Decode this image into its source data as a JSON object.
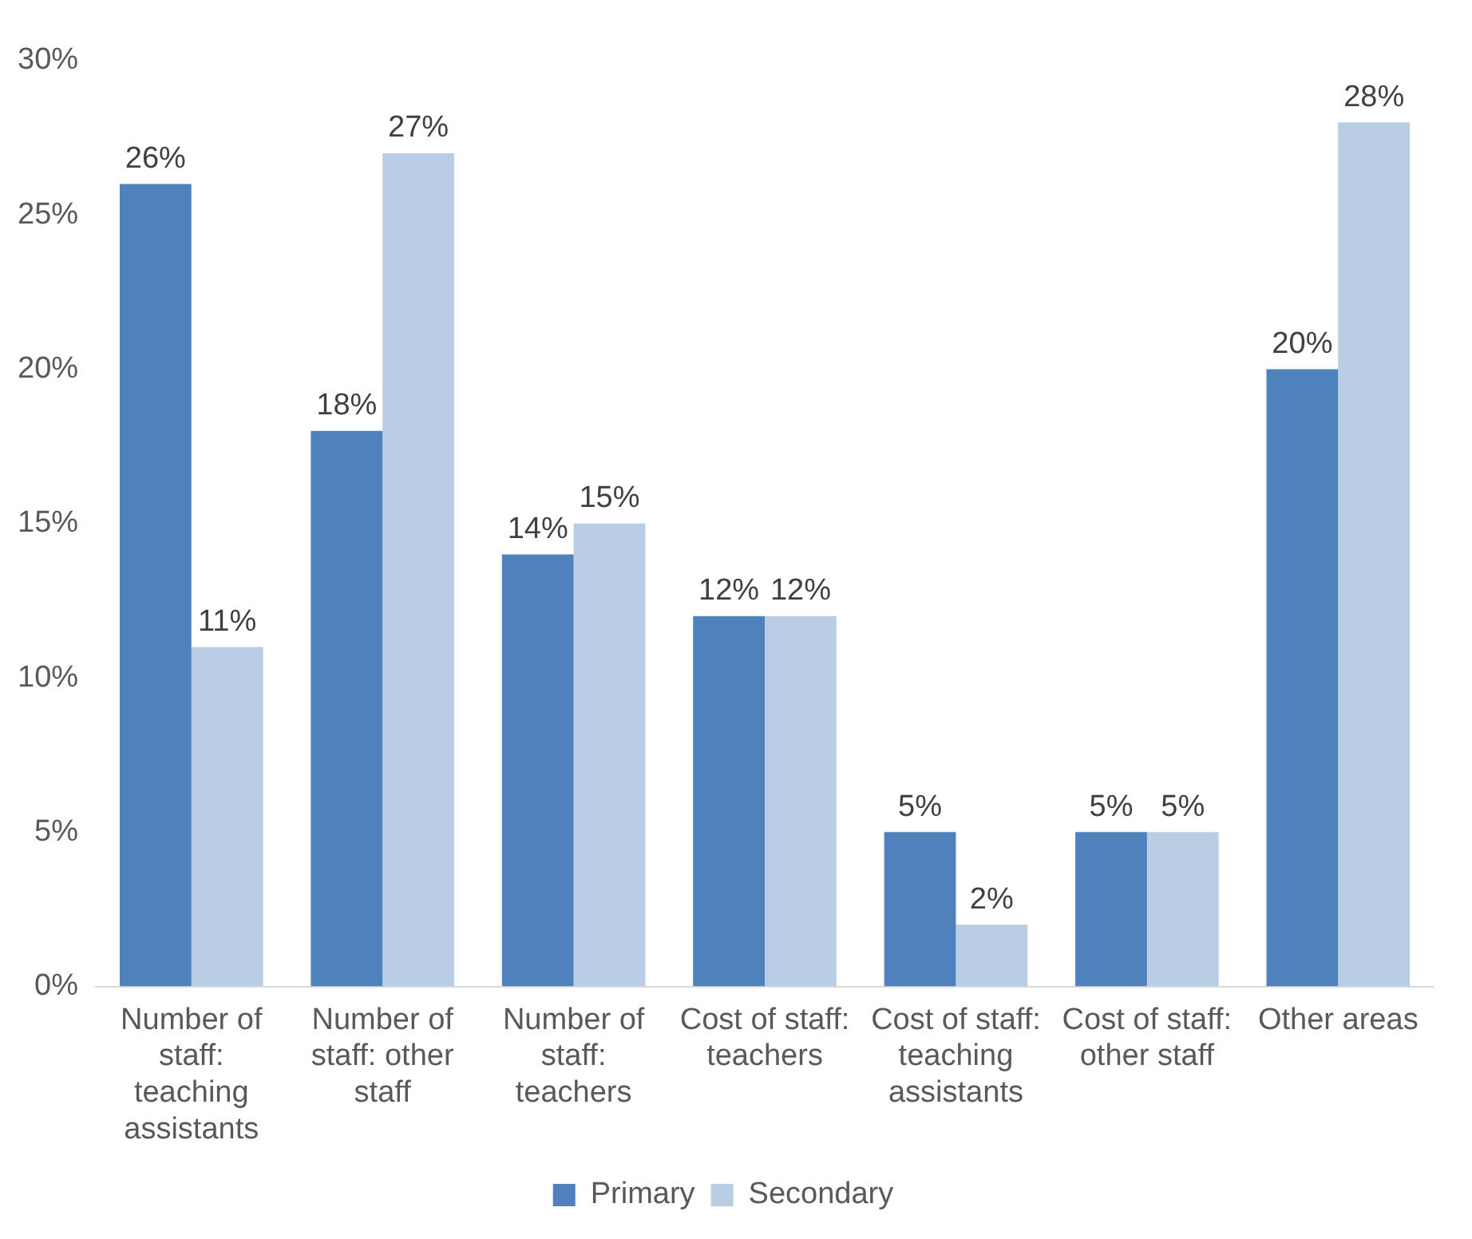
{
  "chart_data": {
    "type": "bar",
    "categories": [
      "Number of staff: teaching assistants",
      "Number of staff: other staff",
      "Number of staff: teachers",
      "Cost of staff: teachers",
      "Cost of staff: teaching assistants",
      "Cost of staff: other staff",
      "Other areas"
    ],
    "series": [
      {
        "name": "Primary",
        "color": "#4f81bd",
        "values": [
          26,
          18,
          14,
          12,
          5,
          5,
          20
        ],
        "value_labels": [
          "26%",
          "18%",
          "14%",
          "12%",
          "5%",
          "5%",
          "20%"
        ]
      },
      {
        "name": "Secondary",
        "color": "#b9cde5",
        "values": [
          11,
          27,
          15,
          12,
          2,
          5,
          28
        ],
        "value_labels": [
          "11%",
          "27%",
          "15%",
          "12%",
          "2%",
          "5%",
          "28%"
        ]
      }
    ],
    "ylim": [
      0,
      30
    ],
    "yticks": [
      {
        "value": 0,
        "label": "0%"
      },
      {
        "value": 5,
        "label": "5%"
      },
      {
        "value": 10,
        "label": "10%"
      },
      {
        "value": 15,
        "label": "15%"
      },
      {
        "value": 20,
        "label": "20%"
      },
      {
        "value": 25,
        "label": "25%"
      },
      {
        "value": 30,
        "label": "30%"
      }
    ],
    "grid": false,
    "legend": "bottom"
  }
}
